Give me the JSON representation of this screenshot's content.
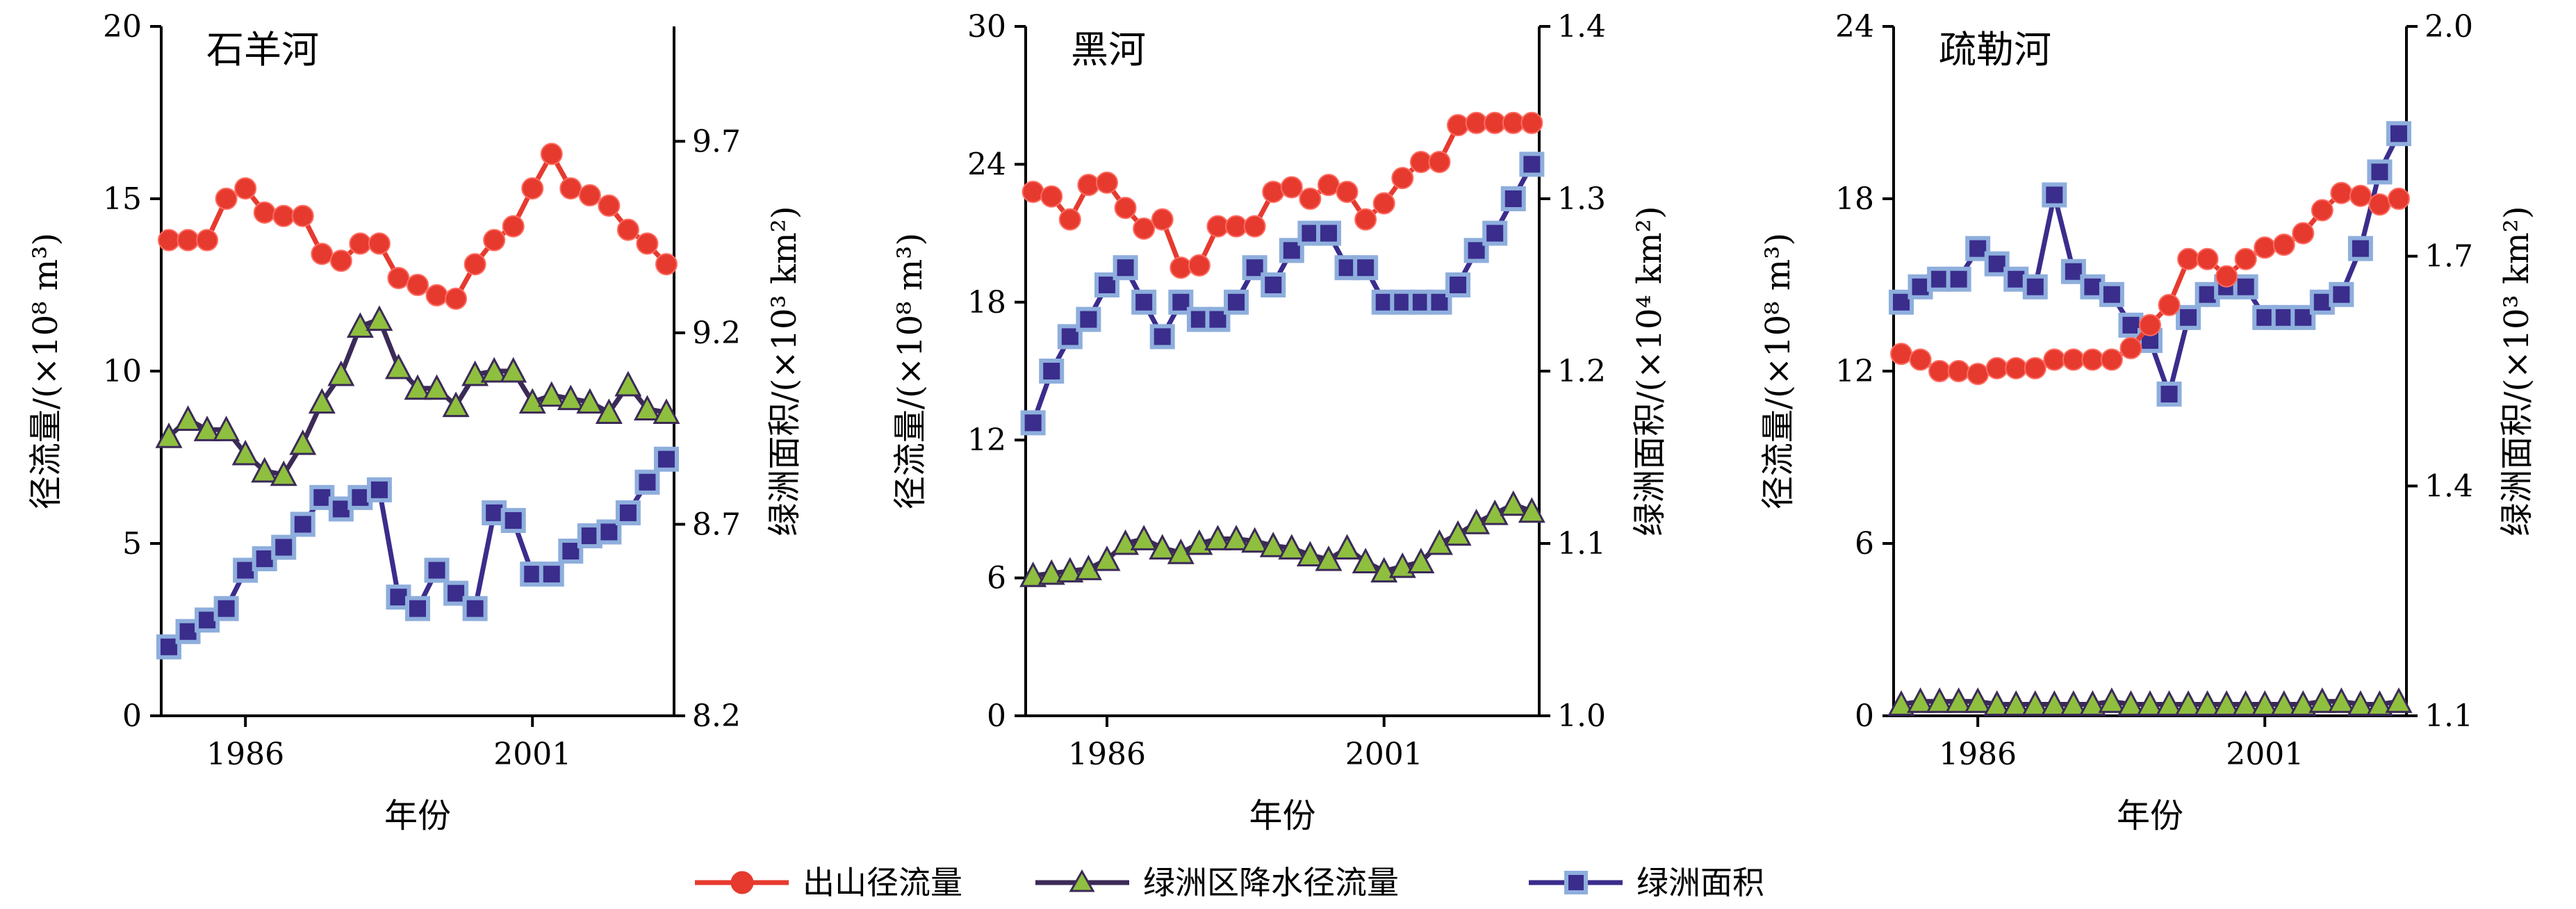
{
  "colors": {
    "runoff": "#e63a2f",
    "precip_line": "#3b2a57",
    "precip_marker": "#8fbf3f",
    "area_line": "#3a2d8c",
    "area_marker": "#4a76c2",
    "area_marker_edge": "#8eaedd"
  },
  "legend": {
    "runoff_label": "出山径流量",
    "precip_label": "绿洲区降水径流量",
    "area_label": "绿洲面积"
  },
  "chart_data": [
    {
      "type": "line",
      "title": "石羊河",
      "xlabel": "年份",
      "ylabel": "径流量/(×10⁸ m³)",
      "y2label": "绿洲面积/(×10³ km²)",
      "x_ticks": [
        "1986",
        "2001"
      ],
      "ylim": [
        0,
        20
      ],
      "y_ticks": [
        "0",
        "5",
        "10",
        "15",
        "20"
      ],
      "y2lim": [
        8.2,
        10.0
      ],
      "y2_ticks": [
        "8.2",
        "8.7",
        "9.2",
        "9.7"
      ],
      "years": [
        1982,
        1983,
        1984,
        1985,
        1986,
        1987,
        1988,
        1989,
        1990,
        1991,
        1992,
        1993,
        1994,
        1995,
        1996,
        1997,
        1998,
        1999,
        2000,
        2001,
        2002,
        2003,
        2004,
        2005,
        2006,
        2007,
        2008
      ],
      "series": [
        {
          "name": "出山径流量",
          "axis": "left",
          "values": [
            13.8,
            13.8,
            13.8,
            15.0,
            15.3,
            14.6,
            14.5,
            14.5,
            13.4,
            13.2,
            13.7,
            13.7,
            12.7,
            12.5,
            12.2,
            12.1,
            13.1,
            13.8,
            14.2,
            15.3,
            16.3,
            15.3,
            15.1,
            14.8,
            14.1,
            13.7,
            13.1
          ]
        },
        {
          "name": "绿洲区降水径流量",
          "axis": "left",
          "values": [
            8.1,
            8.6,
            8.3,
            8.3,
            7.6,
            7.1,
            7.0,
            7.9,
            9.1,
            9.9,
            11.3,
            11.5,
            10.1,
            9.5,
            9.5,
            9.0,
            9.9,
            10.0,
            10.0,
            9.1,
            9.3,
            9.2,
            9.1,
            8.8,
            9.6,
            8.9,
            8.8
          ]
        },
        {
          "name": "绿洲面积",
          "axis": "right",
          "values": [
            8.38,
            8.42,
            8.45,
            8.48,
            8.58,
            8.61,
            8.64,
            8.7,
            8.77,
            8.74,
            8.77,
            8.79,
            8.51,
            8.48,
            8.58,
            8.52,
            8.48,
            8.73,
            8.71,
            8.57,
            8.57,
            8.63,
            8.67,
            8.68,
            8.73,
            8.81,
            8.87
          ]
        }
      ]
    },
    {
      "type": "line",
      "title": "黑河",
      "xlabel": "年份",
      "ylabel": "径流量/(×10⁸ m³)",
      "y2label": "绿洲面积/(×10⁴ km²)",
      "x_ticks": [
        "1986",
        "2001"
      ],
      "ylim": [
        0,
        30
      ],
      "y_ticks": [
        "0",
        "6",
        "12",
        "18",
        "24",
        "30"
      ],
      "y2lim": [
        1.0,
        1.4
      ],
      "y2_ticks": [
        "1.0",
        "1.1",
        "1.2",
        "1.3",
        "1.4"
      ],
      "years": [
        1982,
        1983,
        1984,
        1985,
        1986,
        1987,
        1988,
        1989,
        1990,
        1991,
        1992,
        1993,
        1994,
        1995,
        1996,
        1997,
        1998,
        1999,
        2000,
        2001,
        2002,
        2003,
        2004,
        2005,
        2006,
        2007,
        2008,
        2009
      ],
      "series": [
        {
          "name": "出山径流量",
          "axis": "left",
          "values": [
            22.8,
            22.6,
            21.6,
            23.1,
            23.2,
            22.1,
            21.2,
            21.6,
            19.5,
            19.6,
            21.3,
            21.3,
            21.3,
            22.8,
            23.0,
            22.5,
            23.1,
            22.8,
            21.6,
            22.3,
            23.4,
            24.1,
            24.1,
            25.7,
            25.8,
            25.8,
            25.8,
            25.8
          ]
        },
        {
          "name": "绿洲区降水径流量",
          "axis": "left",
          "values": [
            6.1,
            6.2,
            6.3,
            6.4,
            6.8,
            7.5,
            7.7,
            7.3,
            7.1,
            7.5,
            7.7,
            7.7,
            7.6,
            7.4,
            7.3,
            7.0,
            6.8,
            7.3,
            6.7,
            6.3,
            6.5,
            6.7,
            7.5,
            7.9,
            8.4,
            8.8,
            9.2,
            8.9
          ]
        },
        {
          "name": "绿洲面积",
          "axis": "right",
          "values": [
            1.17,
            1.2,
            1.22,
            1.23,
            1.25,
            1.26,
            1.24,
            1.22,
            1.24,
            1.23,
            1.23,
            1.24,
            1.26,
            1.25,
            1.27,
            1.28,
            1.28,
            1.26,
            1.26,
            1.24,
            1.24,
            1.24,
            1.24,
            1.25,
            1.27,
            1.28,
            1.3,
            1.32
          ]
        }
      ]
    },
    {
      "type": "line",
      "title": "疏勒河",
      "xlabel": "年份",
      "ylabel": "径流量/(×10⁸ m³)",
      "y2label": "绿洲面积/(×10³ km²)",
      "x_ticks": [
        "1986",
        "2001"
      ],
      "ylim": [
        0,
        24
      ],
      "y_ticks": [
        "0",
        "6",
        "12",
        "18",
        "24"
      ],
      "y2lim": [
        1.1,
        2.0
      ],
      "y2_ticks": [
        "1.1",
        "1.4",
        "1.7",
        "2.0"
      ],
      "years": [
        1982,
        1983,
        1984,
        1985,
        1986,
        1987,
        1988,
        1989,
        1990,
        1991,
        1992,
        1993,
        1994,
        1995,
        1996,
        1997,
        1998,
        1999,
        2000,
        2001,
        2002,
        2003,
        2004,
        2005,
        2006,
        2007,
        2008
      ],
      "series": [
        {
          "name": "出山径流量",
          "axis": "right_none",
          "values": [
            12.6,
            12.4,
            12.0,
            12.0,
            11.9,
            12.1,
            12.1,
            12.1,
            12.4,
            12.4,
            12.4,
            12.4,
            12.8,
            13.6,
            14.3,
            15.9,
            15.9,
            15.3,
            15.9,
            16.3,
            16.4,
            16.8,
            17.6,
            18.2,
            18.1,
            17.8,
            18.0
          ]
        },
        {
          "name": "绿洲区降水径流量",
          "axis": "left",
          "values": [
            0.4,
            0.5,
            0.5,
            0.5,
            0.5,
            0.4,
            0.4,
            0.4,
            0.4,
            0.4,
            0.4,
            0.5,
            0.4,
            0.4,
            0.4,
            0.4,
            0.4,
            0.4,
            0.4,
            0.4,
            0.4,
            0.4,
            0.5,
            0.5,
            0.4,
            0.4,
            0.5
          ]
        },
        {
          "name": "绿洲面积",
          "axis": "right",
          "values": [
            1.64,
            1.66,
            1.67,
            1.67,
            1.71,
            1.69,
            1.67,
            1.66,
            1.78,
            1.68,
            1.66,
            1.65,
            1.61,
            1.59,
            1.52,
            1.62,
            1.65,
            1.66,
            1.66,
            1.62,
            1.62,
            1.62,
            1.64,
            1.65,
            1.71,
            1.81,
            1.86
          ]
        }
      ]
    }
  ]
}
